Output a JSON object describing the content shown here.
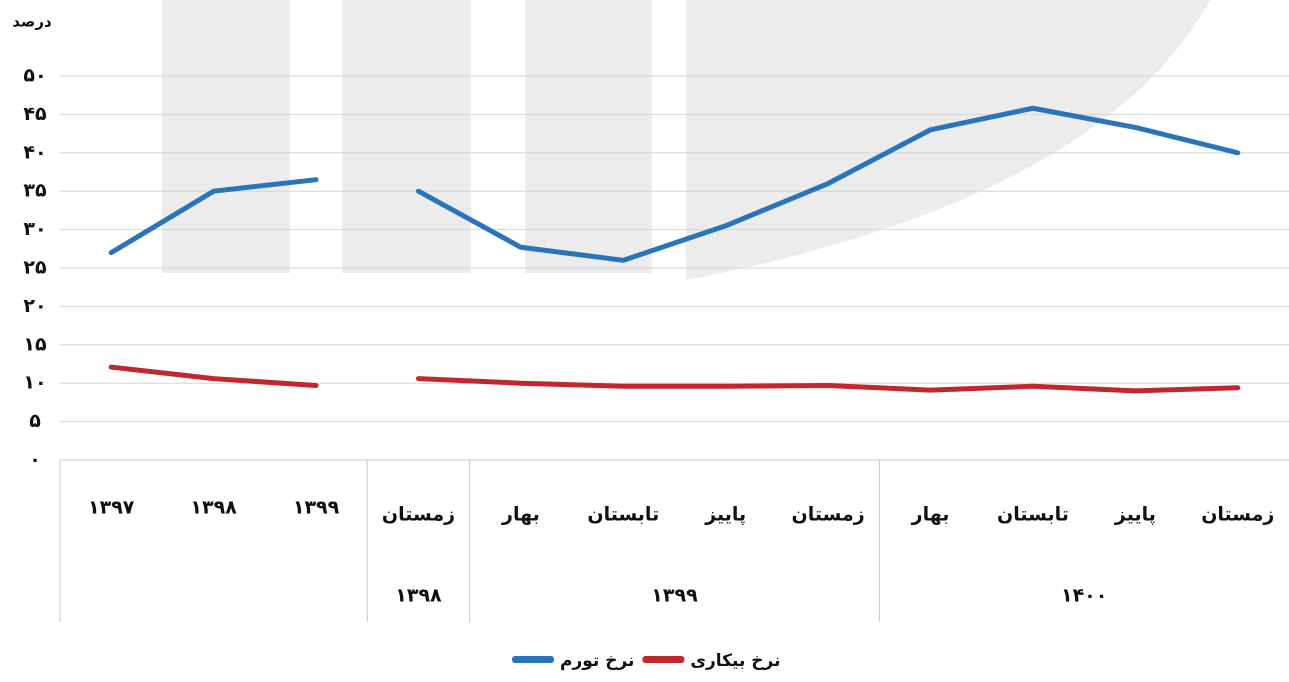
{
  "chart_data": {
    "type": "line",
    "y_label": "درصد",
    "categories": [
      "۱۳۹۷",
      "۱۳۹۸",
      "۱۳۹۹",
      "زمستان",
      "بهار",
      "تابستان",
      "پاییز",
      "زمستان",
      "بهار",
      "تابستان",
      "پاییز",
      "زمستان"
    ],
    "groups": [
      {
        "label": null,
        "size": 3
      },
      {
        "label": "۱۳۹۸",
        "size": 1
      },
      {
        "label": "۱۳۹۹",
        "size": 4
      },
      {
        "label": "۱۴۰۰",
        "size": 4
      }
    ],
    "gap_before": 3,
    "series": [
      {
        "name": "نرخ تورم",
        "color": "#2a74b9",
        "values": [
          27,
          35,
          36.5,
          35,
          27.7,
          26,
          30.5,
          36,
          43,
          45.8,
          43.3,
          40
        ]
      },
      {
        "name": "نرخ بیکاری",
        "color": "#c1272d",
        "values": [
          12.1,
          10.6,
          9.7,
          10.6,
          10,
          9.6,
          9.6,
          9.7,
          9.1,
          9.6,
          9.0,
          9.4
        ]
      }
    ],
    "ylim": [
      0,
      50
    ],
    "yticks": [
      {
        "value": 0,
        "label": "۰"
      },
      {
        "value": 5,
        "label": "۵"
      },
      {
        "value": 10,
        "label": "۱۰"
      },
      {
        "value": 15,
        "label": "۱۵"
      },
      {
        "value": 20,
        "label": "۲۰"
      },
      {
        "value": 25,
        "label": "۲۵"
      },
      {
        "value": 30,
        "label": "۳۰"
      },
      {
        "value": 35,
        "label": "۳۵"
      },
      {
        "value": 40,
        "label": "۴۰"
      },
      {
        "value": 45,
        "label": "۴۵"
      },
      {
        "value": 50,
        "label": "۵۰"
      }
    ],
    "grid": true
  }
}
